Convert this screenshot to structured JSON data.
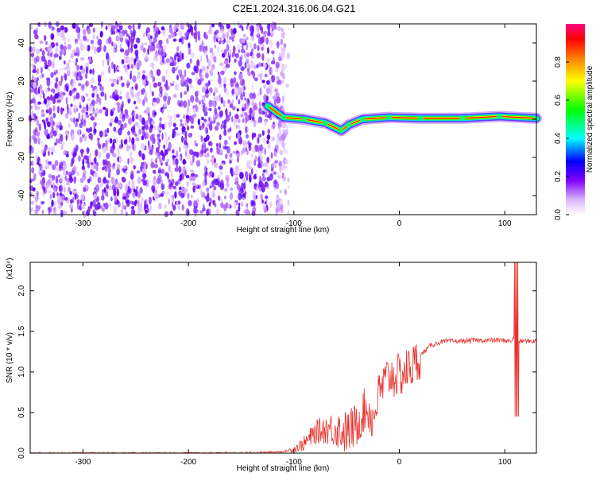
{
  "title": "C2E1.2024.316.06.04.G21",
  "chart_data": [
    {
      "type": "heatmap",
      "xlabel": "Height of straight line (km)",
      "ylabel": "Frequency (Hz)",
      "xlim": [
        -350,
        130
      ],
      "ylim": [
        -50,
        50
      ],
      "xticks": [
        "-300",
        "-200",
        "-100",
        "0",
        "100"
      ],
      "yticks": [
        "-40",
        "-20",
        "0",
        "20",
        "40"
      ],
      "colorbar": {
        "label": "Normalized spectral amplitude",
        "range": [
          0,
          1
        ],
        "ticks": [
          "0.0",
          "0.2",
          "0.4",
          "0.6",
          "0.8"
        ],
        "colors": [
          "#ffffff",
          "#d8b4ff",
          "#8000ff",
          "#0000ff",
          "#00ffff",
          "#00ff00",
          "#ffff00",
          "#ff8000",
          "#ff0000",
          "#ff0080"
        ]
      },
      "features": {
        "noise_region_x": [
          -350,
          -105
        ],
        "signal_ridge": [
          {
            "x": -125,
            "y": 7
          },
          {
            "x": -110,
            "y": 1
          },
          {
            "x": -90,
            "y": 0
          },
          {
            "x": -70,
            "y": -2
          },
          {
            "x": -55,
            "y": -6
          },
          {
            "x": -48,
            "y": -3
          },
          {
            "x": -35,
            "y": 0
          },
          {
            "x": -10,
            "y": 1
          },
          {
            "x": 20,
            "y": 0.5
          },
          {
            "x": 60,
            "y": 0.5
          },
          {
            "x": 95,
            "y": 1.5
          },
          {
            "x": 130,
            "y": 0.5
          }
        ]
      }
    },
    {
      "type": "line",
      "xlabel": "Height of straight line (km)",
      "ylabel": "SNR (10 * v/v)",
      "y_multiplier": "(x10⁴)",
      "xlim": [
        -350,
        130
      ],
      "ylim": [
        0,
        2.35
      ],
      "xticks": [
        "-300",
        "-200",
        "-100",
        "0",
        "100"
      ],
      "yticks": [
        "0.0",
        "0.5",
        "1.0",
        "1.5",
        "2.0"
      ],
      "series_color": "#e8322d",
      "series": [
        {
          "x": [
            -350,
            -300,
            -250,
            -200,
            -150,
            -110,
            -100,
            -90,
            -80,
            -70,
            -60,
            -50,
            -40,
            -35,
            -30,
            -25,
            -20,
            -15,
            -10,
            -5,
            0,
            5,
            10,
            15,
            20,
            25,
            30,
            40,
            50,
            60,
            70,
            80,
            90,
            100,
            105,
            108,
            110,
            112,
            115,
            120,
            130
          ],
          "y": [
            0.0,
            0.0,
            0.0,
            0.0,
            0.0,
            0.02,
            0.05,
            0.12,
            0.25,
            0.3,
            0.3,
            0.25,
            0.35,
            0.5,
            0.55,
            0.4,
            0.7,
            0.85,
            0.95,
            0.95,
            0.95,
            1.0,
            1.05,
            1.1,
            1.2,
            1.27,
            1.33,
            1.37,
            1.38,
            1.38,
            1.39,
            1.39,
            1.39,
            1.39,
            1.38,
            1.4,
            1.5,
            1.38,
            1.38,
            1.38,
            1.38
          ]
        }
      ],
      "annotations": [
        {
          "x": 111,
          "y": 2.35,
          "label": "spike"
        },
        {
          "x": 111,
          "y": 0.45,
          "label": "dip"
        }
      ]
    }
  ]
}
